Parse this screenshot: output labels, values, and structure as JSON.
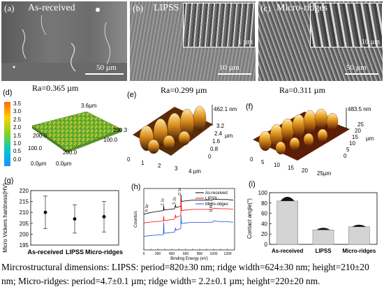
{
  "panels": {
    "a": {
      "label": "(a)",
      "title": "As-received",
      "scale": "50 µm"
    },
    "b": {
      "label": "(b)",
      "title": "LIPSS",
      "scale": "10 µm",
      "inset_scale": "1 µm"
    },
    "c": {
      "label": "(c)",
      "title": "Micro-ridges",
      "scale": "50 µm",
      "inset_scale": "10 µm"
    },
    "d": {
      "label": "(d)",
      "ra": "Ra=0.365 µm",
      "colorbar_ticks": [
        "3.5",
        "3.0",
        "2.5",
        "2.0",
        "1.5",
        "1.0",
        "0.5",
        "0.0"
      ],
      "axis_labels": [
        "3.6µm",
        "290.3",
        "200.0",
        "100.0",
        "200.0",
        "100.0",
        "0.0µm",
        "0.0µm"
      ]
    },
    "e": {
      "label": "(e)",
      "ra": "Ra=0.299 µm",
      "height": "462.1 nm",
      "x_ticks": [
        "0",
        "1",
        "2",
        "3",
        "4 µm"
      ],
      "y_ticks": [
        "0",
        "0.8",
        "1.6",
        "2.4",
        "3.2"
      ],
      "y_unit": "µm"
    },
    "f": {
      "label": "(f)",
      "ra": "Ra=0.311 µm",
      "height": "483.5 nm",
      "x_ticks": [
        "0",
        "5",
        "10",
        "15",
        "20",
        "25µm"
      ],
      "y_ticks": [
        "0",
        "5",
        "10",
        "15",
        "20",
        "25"
      ],
      "y_unit": "µm"
    },
    "g": {
      "label": "(g)"
    },
    "h": {
      "label": "(h)",
      "peak_labels": [
        "Ti 3p",
        "C 1s",
        "Ti 2p",
        "O 1s",
        "O KLL"
      ]
    },
    "i": {
      "label": "(i)"
    }
  },
  "caption": "Mircrostructural dimensions: LIPSS: period=820±30 nm; ridge width=624±30 nm; height=210±20 nm; Micro-ridges: period=4.7±0.1 µm; ridge width= 2.2±0.1 µm; height=220±20 nm.",
  "chart_data": [
    {
      "type": "scatter",
      "title": "",
      "ylabel": "Micro Vickers hardness(HV)",
      "xlabel": "",
      "categories": [
        "As-received",
        "LIPSS",
        "Micro-ridges"
      ],
      "values": [
        210,
        207,
        208
      ],
      "error": [
        7.5,
        6.5,
        7
      ],
      "yticks": [
        "195",
        "200",
        "205",
        "210",
        "215",
        "220"
      ],
      "ylim": [
        195,
        220
      ]
    },
    {
      "type": "line",
      "title": "",
      "xlabel": "Binding Energy (eV)",
      "ylabel": "Counts/s",
      "xticks": [
        "0",
        "100",
        "200",
        "300",
        "400",
        "500",
        "600",
        "700",
        "800",
        "900",
        "1000",
        "1100",
        "1200"
      ],
      "xlim": [
        0,
        1300
      ],
      "legend": "top-right",
      "series": [
        {
          "name": "As-received",
          "color": "#000000",
          "x": [
            0,
            60,
            160,
            280,
            285,
            290,
            440,
            455,
            460,
            530,
            532,
            540,
            600,
            700,
            980,
            1000,
            1100,
            1200,
            1280
          ],
          "y": [
            0.58,
            0.6,
            0.62,
            0.64,
            0.72,
            0.65,
            0.67,
            0.74,
            0.69,
            0.71,
            0.9,
            0.79,
            0.8,
            0.81,
            0.81,
            0.83,
            0.82,
            0.82,
            0.81
          ]
        },
        {
          "name": "LIPSS",
          "color": "#ff0000",
          "x": [
            0,
            60,
            160,
            280,
            285,
            290,
            440,
            455,
            460,
            530,
            532,
            540,
            600,
            700,
            980,
            1000,
            1100,
            1200,
            1280
          ],
          "y": [
            0.44,
            0.45,
            0.46,
            0.47,
            0.55,
            0.48,
            0.5,
            0.57,
            0.53,
            0.56,
            0.86,
            0.64,
            0.65,
            0.66,
            0.66,
            0.68,
            0.67,
            0.67,
            0.66
          ]
        },
        {
          "name": "Micro-ridges",
          "color": "#1f4ed8",
          "x": [
            0,
            60,
            160,
            280,
            285,
            290,
            440,
            455,
            460,
            530,
            532,
            540,
            600,
            700,
            980,
            1000,
            1100,
            1200,
            1280
          ],
          "y": [
            0.22,
            0.23,
            0.24,
            0.25,
            0.45,
            0.27,
            0.29,
            0.36,
            0.32,
            0.35,
            0.56,
            0.43,
            0.44,
            0.45,
            0.45,
            0.47,
            0.46,
            0.46,
            0.45
          ]
        }
      ]
    },
    {
      "type": "bar",
      "title": "",
      "ylabel": "Contact angle(°)",
      "xlabel": "",
      "categories": [
        "As-received",
        "LIPSS",
        "Micro-ridges"
      ],
      "values": [
        84,
        28,
        34
      ],
      "yticks": [
        "0",
        "20",
        "40",
        "60",
        "80",
        "100"
      ],
      "ylim": [
        0,
        100
      ]
    }
  ]
}
